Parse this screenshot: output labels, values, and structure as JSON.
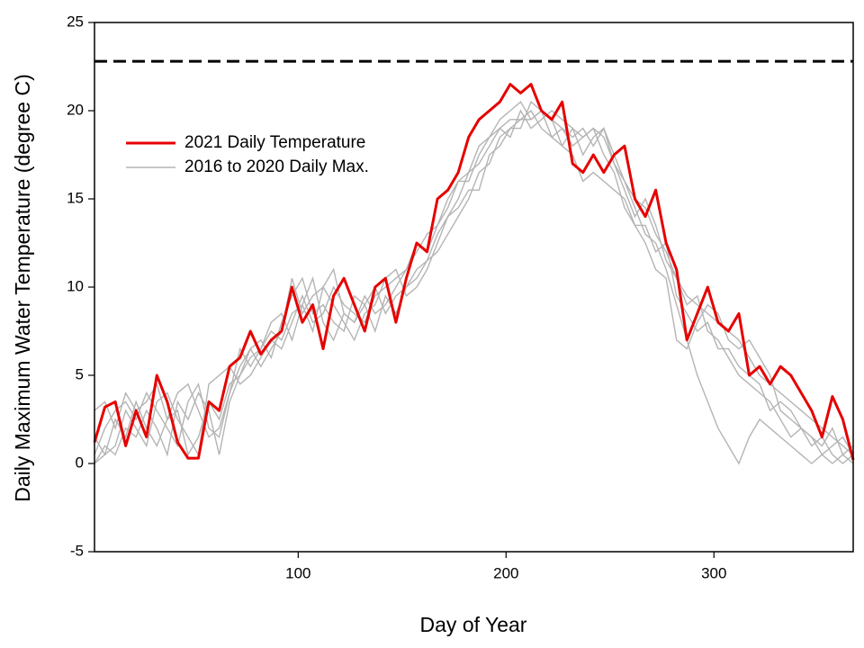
{
  "chart_data": {
    "type": "line",
    "xlabel": "Day of Year",
    "ylabel": "Daily Maximum Water Temperature (degree C)",
    "xlim": [
      2,
      367
    ],
    "ylim": [
      -5,
      25
    ],
    "xticks": [
      100,
      200,
      300
    ],
    "yticks": [
      -5,
      0,
      5,
      10,
      15,
      20,
      25
    ],
    "grid": false,
    "legend": "upper-left",
    "hline": 22.8,
    "x": [
      2,
      7,
      12,
      17,
      22,
      27,
      32,
      37,
      42,
      47,
      52,
      57,
      62,
      67,
      72,
      77,
      82,
      87,
      92,
      97,
      102,
      107,
      112,
      117,
      122,
      127,
      132,
      137,
      142,
      147,
      152,
      157,
      162,
      167,
      172,
      177,
      182,
      187,
      192,
      197,
      202,
      207,
      212,
      217,
      222,
      227,
      232,
      237,
      242,
      247,
      252,
      257,
      262,
      267,
      272,
      277,
      282,
      287,
      292,
      297,
      302,
      307,
      312,
      317,
      322,
      327,
      332,
      337,
      342,
      347,
      352,
      357,
      362,
      367
    ],
    "series": [
      {
        "name": "2021 Daily Temperature",
        "color": "#e60000",
        "values": [
          1.2,
          3.2,
          3.5,
          1.0,
          3.0,
          1.5,
          5.0,
          3.5,
          1.2,
          0.3,
          0.3,
          3.5,
          3.0,
          5.5,
          6.0,
          7.5,
          6.2,
          7.0,
          7.5,
          10.0,
          8.0,
          9.0,
          6.5,
          9.5,
          10.5,
          9.0,
          7.5,
          10.0,
          10.5,
          8.0,
          10.5,
          12.5,
          12.0,
          15.0,
          15.5,
          16.5,
          18.5,
          19.5,
          20.0,
          20.5,
          21.5,
          21.0,
          21.5,
          20.0,
          19.5,
          20.5,
          17.0,
          16.5,
          17.5,
          16.5,
          17.5,
          18.0,
          15.0,
          14.0,
          15.5,
          12.5,
          11.0,
          7.0,
          8.5,
          10.0,
          8.0,
          7.5,
          8.5,
          5.0,
          5.5,
          4.5,
          5.5,
          5.0,
          4.0,
          3.0,
          1.5,
          3.8,
          2.5,
          0.2
        ]
      },
      {
        "name": "2016 to 2020 Daily Max.",
        "color": "#b4b4b4",
        "lines": [
          [
            0.5,
            2.0,
            3.0,
            3.5,
            2.5,
            4.0,
            3.0,
            2.0,
            1.0,
            3.5,
            4.5,
            2.0,
            1.5,
            4.0,
            5.5,
            6.5,
            7.0,
            6.0,
            8.0,
            9.5,
            10.5,
            8.5,
            9.0,
            8.0,
            7.5,
            9.5,
            9.0,
            10.0,
            8.5,
            9.5,
            10.0,
            10.5,
            11.5,
            13.0,
            14.0,
            15.0,
            16.5,
            17.0,
            18.0,
            19.0,
            19.5,
            19.5,
            20.0,
            19.0,
            18.5,
            19.0,
            18.0,
            18.5,
            19.0,
            18.5,
            17.0,
            16.0,
            15.0,
            14.5,
            13.0,
            12.0,
            10.5,
            9.5,
            9.0,
            8.5,
            8.0,
            7.5,
            7.0,
            6.0,
            5.0,
            4.5,
            4.0,
            3.5,
            3.0,
            2.5,
            2.0,
            1.5,
            1.0,
            0.5
          ],
          [
            0.0,
            0.5,
            2.5,
            1.5,
            3.5,
            2.0,
            1.0,
            2.5,
            3.0,
            0.5,
            1.5,
            3.5,
            2.5,
            4.5,
            5.0,
            6.0,
            6.5,
            7.5,
            7.0,
            8.5,
            9.0,
            10.5,
            8.0,
            7.0,
            8.5,
            8.0,
            9.5,
            8.5,
            9.0,
            10.0,
            11.0,
            12.0,
            13.0,
            13.5,
            15.0,
            16.0,
            16.0,
            17.5,
            18.5,
            19.5,
            20.0,
            20.5,
            19.5,
            20.0,
            18.5,
            18.0,
            19.0,
            17.5,
            18.5,
            19.0,
            17.5,
            16.0,
            14.5,
            13.0,
            12.5,
            11.0,
            9.0,
            7.0,
            5.0,
            3.5,
            2.0,
            1.0,
            0.0,
            1.5,
            2.5,
            2.0,
            1.5,
            1.0,
            0.5,
            0.0,
            0.5,
            0.0,
            0.5,
            0.0
          ],
          [
            3.0,
            3.5,
            2.0,
            4.0,
            3.0,
            3.5,
            4.5,
            2.5,
            4.0,
            4.5,
            3.0,
            1.5,
            2.0,
            4.0,
            6.5,
            5.5,
            6.5,
            8.0,
            8.5,
            7.0,
            9.0,
            7.5,
            10.0,
            9.0,
            8.0,
            7.0,
            8.5,
            9.0,
            10.5,
            11.0,
            9.5,
            10.0,
            11.0,
            12.5,
            14.0,
            14.5,
            15.5,
            15.5,
            17.5,
            18.0,
            19.0,
            19.0,
            20.5,
            20.0,
            19.5,
            18.0,
            17.5,
            16.0,
            16.5,
            16.0,
            15.5,
            15.0,
            13.5,
            12.5,
            11.0,
            10.5,
            7.0,
            6.5,
            8.0,
            9.0,
            8.5,
            7.0,
            6.5,
            7.0,
            6.0,
            5.0,
            3.0,
            2.5,
            2.0,
            1.5,
            1.0,
            2.0,
            0.5,
            1.0
          ],
          [
            0.0,
            1.0,
            0.5,
            2.0,
            1.5,
            3.0,
            2.0,
            0.5,
            3.5,
            2.5,
            4.0,
            3.0,
            0.5,
            3.5,
            5.0,
            6.5,
            5.5,
            6.5,
            7.5,
            10.5,
            8.5,
            9.5,
            10.0,
            11.0,
            8.5,
            8.0,
            9.0,
            7.5,
            9.5,
            8.5,
            10.0,
            11.0,
            11.5,
            12.0,
            13.0,
            14.0,
            15.0,
            16.5,
            17.0,
            18.5,
            19.0,
            19.5,
            19.5,
            20.0,
            19.5,
            19.0,
            18.5,
            19.0,
            18.0,
            19.0,
            17.0,
            15.5,
            14.0,
            15.0,
            13.5,
            11.5,
            10.5,
            9.0,
            9.5,
            7.5,
            7.0,
            6.0,
            5.0,
            4.5,
            4.0,
            3.5,
            2.5,
            1.5,
            2.0,
            1.0,
            1.5,
            0.5,
            0.0,
            0.5
          ],
          [
            1.5,
            0.5,
            1.0,
            3.0,
            2.0,
            1.0,
            3.5,
            4.0,
            2.5,
            1.5,
            0.5,
            4.5,
            5.0,
            5.5,
            4.5,
            5.0,
            6.0,
            7.0,
            6.5,
            8.0,
            9.5,
            8.0,
            8.5,
            10.0,
            9.0,
            8.5,
            8.0,
            9.5,
            10.0,
            10.5,
            11.0,
            12.5,
            12.0,
            13.5,
            14.5,
            16.0,
            16.5,
            18.0,
            18.5,
            19.0,
            18.5,
            20.0,
            19.0,
            19.5,
            20.0,
            19.5,
            19.0,
            18.5,
            19.0,
            17.5,
            16.5,
            14.5,
            13.5,
            13.5,
            12.0,
            12.5,
            9.5,
            8.5,
            7.5,
            8.0,
            6.5,
            6.5,
            5.5,
            5.0,
            4.5,
            3.0,
            3.5,
            3.0,
            2.0,
            1.5,
            0.5,
            1.0,
            1.5,
            0.5
          ]
        ]
      }
    ]
  }
}
